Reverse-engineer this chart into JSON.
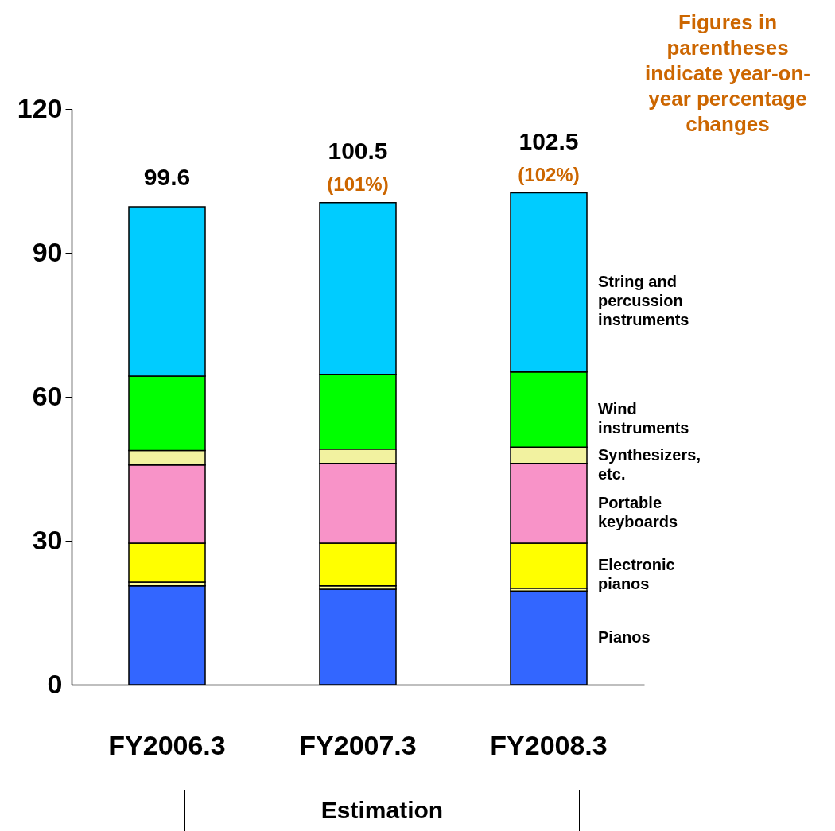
{
  "chart_data": {
    "type": "bar",
    "stacked": true,
    "categories": [
      "FY2006.3",
      "FY2007.3",
      "FY2008.3"
    ],
    "series": [
      {
        "name": "Pianos",
        "color": "#3366ff",
        "values": [
          20.6,
          19.9,
          19.5
        ]
      },
      {
        "color": "#ffff99",
        "values": [
          0.8,
          0.7,
          0.6
        ]
      },
      {
        "name": "Electronic pianos",
        "color": "#ffff00",
        "values": [
          8.1,
          8.9,
          9.4
        ]
      },
      {
        "name": "Portable keyboards",
        "color": "#f893c8",
        "values": [
          16.3,
          16.6,
          16.6
        ]
      },
      {
        "name": "Synthesizers, etc.",
        "color": "#f2f2a0",
        "values": [
          3.0,
          3.0,
          3.4
        ]
      },
      {
        "name": "Wind instruments",
        "color": "#00ff00",
        "values": [
          15.5,
          15.6,
          15.7
        ]
      },
      {
        "name": "String and percussion instruments",
        "color": "#00ccff",
        "values": [
          35.3,
          35.8,
          37.3
        ]
      }
    ],
    "ylim": [
      0,
      120
    ],
    "yticks": [
      0,
      30,
      60,
      90,
      120
    ],
    "totals": [
      "99.6",
      "100.5",
      "102.5"
    ],
    "annotations": [
      {
        "text": "(101%)",
        "x": "FY2007.3",
        "y": 100.5
      },
      {
        "text": "(102%)",
        "x": "FY2008.3",
        "y": 102.5
      },
      "Figures in parentheses indicate year-on-year percentage changes",
      "Estimation"
    ]
  }
}
